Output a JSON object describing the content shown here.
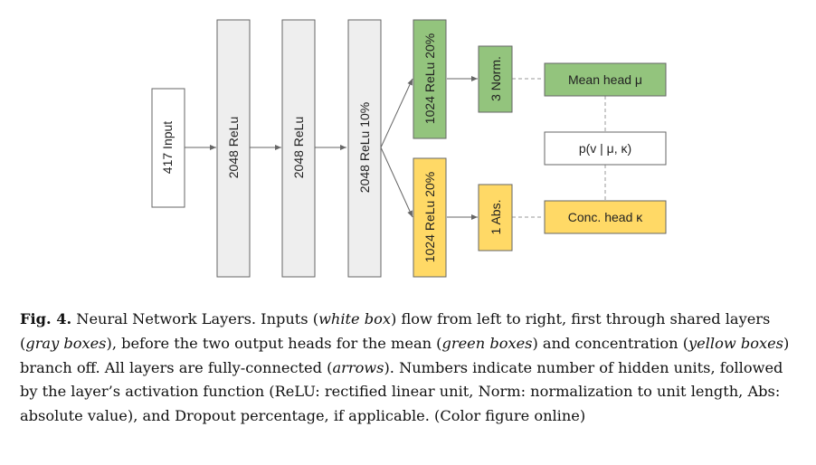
{
  "colors": {
    "white_box": "#ffffff",
    "gray_box": "#eeeeee",
    "green_box": "#93c47d",
    "yellow_box": "#ffd966",
    "stroke": "#666666"
  },
  "layers": {
    "input": "417 Input",
    "shared1": "2048 ReLu",
    "shared2": "2048 ReLu",
    "shared3": "2048 ReLu 10%",
    "mean_branch": "1024 ReLu 20%",
    "conc_branch": "1024 ReLu 20%",
    "norm": "3 Norm.",
    "abs": "1 Abs.",
    "mean_head": "Mean head μ",
    "conc_head": "Conc. head κ",
    "likelihood": "p(v | μ, κ)"
  },
  "caption": {
    "label": "Fig. 4.",
    "parts": [
      " Neural Network Layers. Inputs (",
      "white box",
      ") flow from left to right, first through shared layers (",
      "gray boxes",
      "), before the two output heads for the mean (",
      "green boxes",
      ") and concentration (",
      "yellow boxes",
      ") branch off. All layers are fully-connected (",
      "arrows",
      "). Numbers indicate number of hidden units, followed by the layer’s activation function (ReLU: rectified linear unit, Norm: normalization to unit length, Abs: absolute value), and Dropout percentage, if applicable. (Color figure online)"
    ]
  }
}
